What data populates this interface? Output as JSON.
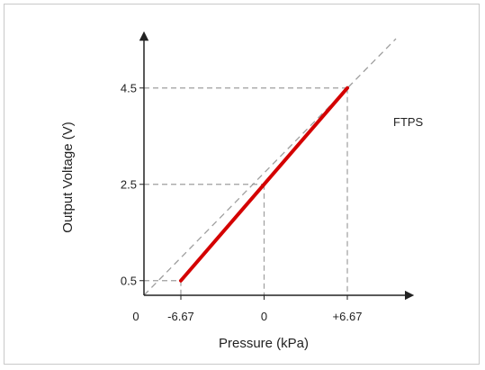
{
  "chart_data": {
    "type": "line",
    "title": "",
    "xlabel": "Pressure (kPa)",
    "ylabel": "Output Voltage (V)",
    "origin_label": "0",
    "x_ticks": [
      {
        "value": -6.67,
        "label": "-6.67"
      },
      {
        "value": 0,
        "label": "0"
      },
      {
        "value": 6.67,
        "label": "+6.67"
      }
    ],
    "y_ticks": [
      {
        "value": 0.5,
        "label": "0.5"
      },
      {
        "value": 2.5,
        "label": "2.5"
      },
      {
        "value": 4.5,
        "label": "4.5"
      }
    ],
    "series": [
      {
        "name": "FTPS",
        "color": "#d40000",
        "x": [
          -6.67,
          6.67
        ],
        "y": [
          0.5,
          4.5
        ]
      }
    ],
    "extrapolation": {
      "color": "#9e9e9e",
      "dashed": true
    },
    "axis_color": "#222222",
    "grid": false
  }
}
